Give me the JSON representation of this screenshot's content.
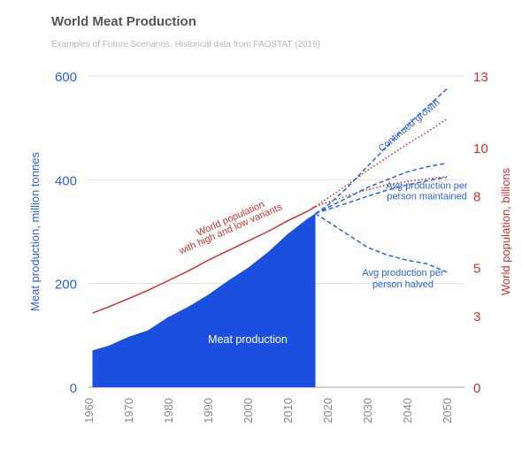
{
  "chart_data": {
    "type": "area",
    "title": "World Meat Production",
    "subtitle": "Examples of Future Scenarios. Historical data from FAOSTAT (2019)",
    "ylabel_left": "Meat production, million tonnes",
    "ylabel_right": "World population, billions",
    "xlim": [
      1960,
      2050
    ],
    "ylim_left": [
      0,
      600
    ],
    "ylim_right": [
      0,
      13
    ],
    "x_ticks": [
      "1960",
      "1970",
      "1980",
      "1990",
      "2000",
      "2010",
      "2020",
      "2030",
      "2040",
      "2050"
    ],
    "y_ticks_left": [
      "0",
      "200",
      "400",
      "600"
    ],
    "y_ticks_right": [
      "0",
      "3",
      "5",
      "8",
      "10",
      "13"
    ],
    "grid": true,
    "colors": {
      "production": "#1a4fe0",
      "population": "#d9312a",
      "left_axis": "#2a62e8",
      "right_axis": "#d9312a"
    },
    "series": [
      {
        "name": "Meat production",
        "axis": "left",
        "style": "area",
        "x": [
          1961,
          1965,
          1970,
          1975,
          1980,
          1985,
          1990,
          1995,
          2000,
          2005,
          2010,
          2015,
          2017
        ],
        "y": [
          71,
          80,
          97,
          110,
          135,
          155,
          178,
          205,
          230,
          260,
          295,
          325,
          335
        ]
      },
      {
        "name": "World population",
        "axis": "right",
        "style": "line",
        "x": [
          1961,
          1965,
          1970,
          1975,
          1980,
          1985,
          1990,
          1995,
          2000,
          2005,
          2010,
          2015,
          2017
        ],
        "y": [
          3.1,
          3.35,
          3.7,
          4.05,
          4.45,
          4.85,
          5.3,
          5.7,
          6.1,
          6.5,
          6.95,
          7.35,
          7.55
        ]
      },
      {
        "name": "Population high variant",
        "axis": "right",
        "style": "dotted",
        "x": [
          2017,
          2025,
          2030,
          2035,
          2040,
          2045,
          2050
        ],
        "y": [
          7.55,
          8.45,
          9.05,
          9.6,
          10.15,
          10.65,
          11.2
        ]
      },
      {
        "name": "Population low variant",
        "axis": "right",
        "style": "dotted",
        "x": [
          2017,
          2025,
          2030,
          2035,
          2040,
          2045,
          2050
        ],
        "y": [
          7.55,
          8.0,
          8.25,
          8.45,
          8.6,
          8.7,
          8.8
        ]
      },
      {
        "name": "Continued growth",
        "axis": "left",
        "style": "dashed",
        "x": [
          2017,
          2020,
          2025,
          2030,
          2035,
          2040,
          2045,
          2050
        ],
        "y": [
          335,
          350,
          385,
          425,
          465,
          505,
          540,
          575
        ]
      },
      {
        "name": "Avg production per person maintained (upper)",
        "axis": "left",
        "style": "dashed",
        "x": [
          2017,
          2025,
          2030,
          2035,
          2040,
          2045,
          2050
        ],
        "y": [
          335,
          365,
          385,
          400,
          415,
          425,
          432
        ]
      },
      {
        "name": "Avg production per person maintained (lower)",
        "axis": "left",
        "style": "dashed",
        "x": [
          2017,
          2025,
          2030,
          2035,
          2040,
          2045,
          2050
        ],
        "y": [
          335,
          355,
          368,
          380,
          390,
          398,
          405
        ]
      },
      {
        "name": "Avg production per person halved",
        "axis": "left",
        "style": "dashed",
        "x": [
          2017,
          2020,
          2025,
          2030,
          2035,
          2040,
          2045,
          2050
        ],
        "y": [
          335,
          320,
          295,
          270,
          255,
          245,
          238,
          222
        ]
      }
    ],
    "annotations": [
      {
        "id": "meat-production",
        "text": "Meat production",
        "x": 2000,
        "y": 85,
        "axis": "left",
        "color": "#ffffff",
        "rotate": 0
      },
      {
        "id": "world-population-1",
        "text": "World population",
        "x": 1996,
        "y": 320,
        "axis": "left",
        "color": "#d9312a",
        "rotate": -24
      },
      {
        "id": "world-population-2",
        "text": "with high and low variants",
        "x": 1996,
        "y": 300,
        "axis": "left",
        "color": "#d9312a",
        "rotate": -24
      },
      {
        "id": "continued-growth",
        "text": "Continued growth",
        "x": 2041,
        "y": 500,
        "axis": "left",
        "color": "#2a62e8",
        "rotate": -40
      },
      {
        "id": "maintained-1",
        "text": "Avg production per",
        "x": 2045,
        "y": 383,
        "axis": "left",
        "color": "#2a62e8",
        "rotate": 0
      },
      {
        "id": "maintained-2",
        "text": "person maintained",
        "x": 2045,
        "y": 362,
        "axis": "left",
        "color": "#2a62e8",
        "rotate": 0
      },
      {
        "id": "halved-1",
        "text": "Avg production per",
        "x": 2039,
        "y": 215,
        "axis": "left",
        "color": "#2a62e8",
        "rotate": 0
      },
      {
        "id": "halved-2",
        "text": "person halved",
        "x": 2039,
        "y": 193,
        "axis": "left",
        "color": "#2a62e8",
        "rotate": 0
      }
    ]
  }
}
